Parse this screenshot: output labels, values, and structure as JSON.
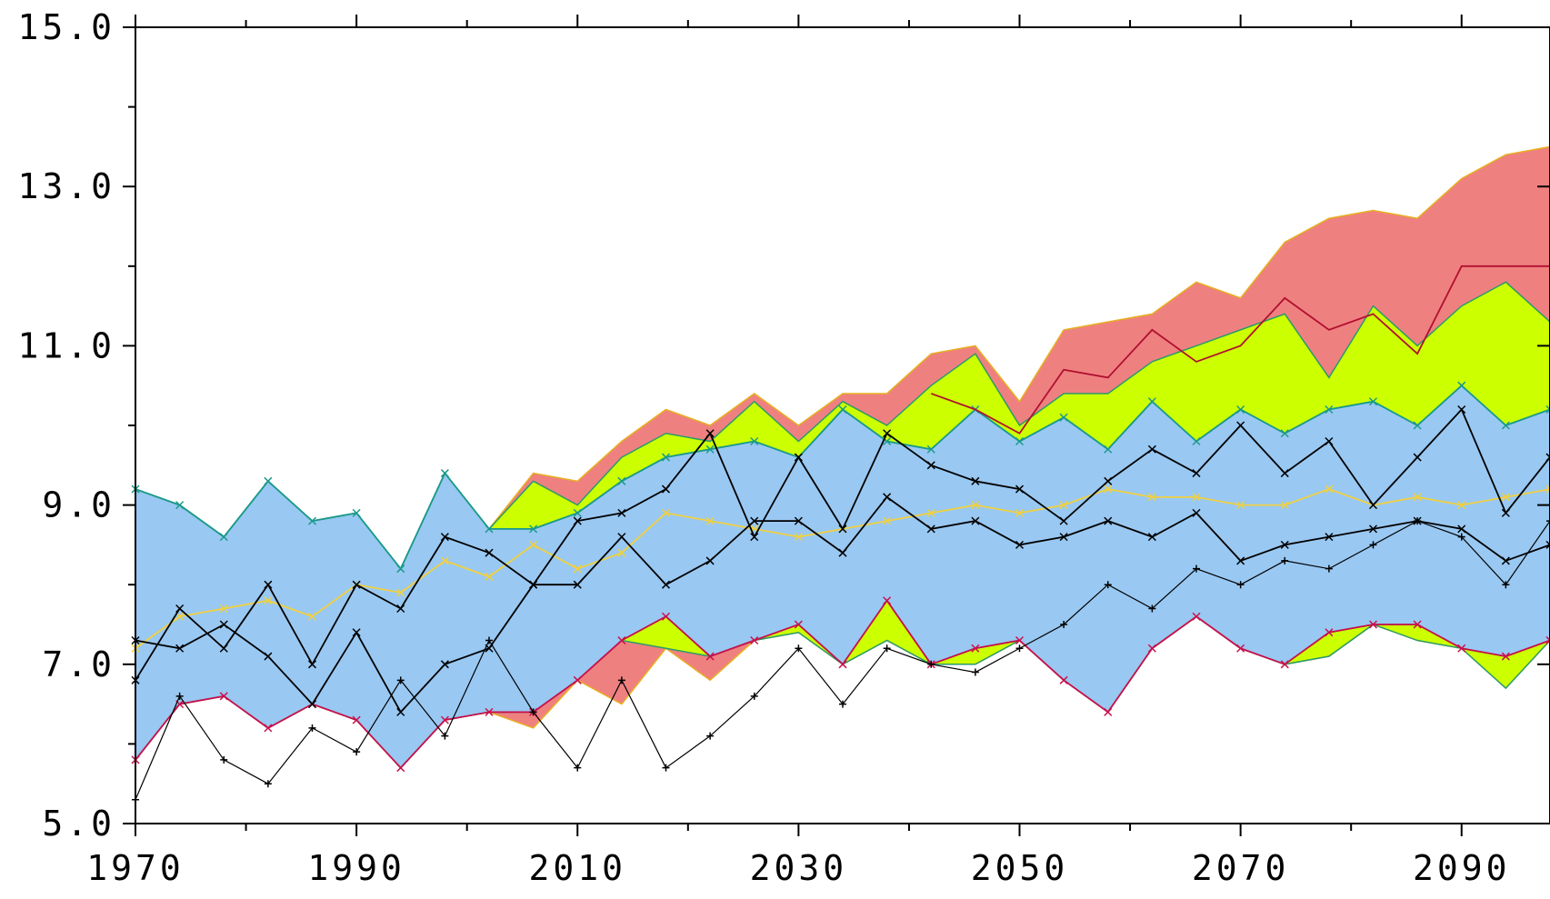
{
  "chart_data": {
    "type": "band",
    "x": [
      1970,
      1974,
      1978,
      1982,
      1986,
      1990,
      1994,
      1998,
      2002,
      2006,
      2010,
      2014,
      2018,
      2022,
      2026,
      2030,
      2034,
      2038,
      2042,
      2046,
      2050,
      2054,
      2058,
      2062,
      2066,
      2070,
      2074,
      2078,
      2082,
      2086,
      2090,
      2094,
      2098
    ],
    "xlim": [
      1970,
      2098
    ],
    "ylim": [
      5,
      15
    ],
    "xticks": [
      1970,
      1990,
      2010,
      2030,
      2050,
      2070,
      2090
    ],
    "xminor_ticks": [
      1980,
      2000,
      2020,
      2040,
      2060,
      2080
    ],
    "yticks": [
      {
        "value": 5,
        "label": "5.0"
      },
      {
        "value": 7,
        "label": "7.0"
      },
      {
        "value": 9,
        "label": "9.0"
      },
      {
        "value": 11,
        "label": "11.0"
      },
      {
        "value": 13,
        "label": "13.0"
      },
      {
        "value": 15,
        "label": "15.0"
      }
    ],
    "yminor_ticks": [
      6,
      8,
      10,
      12,
      14
    ],
    "bands": [
      {
        "color": "#ef8080",
        "line_color": "#e8b020",
        "upper": [
          9.2,
          9.0,
          8.6,
          9.3,
          8.8,
          8.9,
          8.2,
          9.4,
          8.7,
          9.4,
          9.3,
          9.8,
          10.2,
          10.0,
          10.4,
          10.0,
          10.4,
          10.4,
          10.9,
          11.0,
          10.3,
          11.2,
          11.3,
          11.4,
          11.8,
          11.6,
          12.3,
          12.6,
          12.7,
          12.6,
          13.1,
          13.4,
          13.5
        ],
        "lower": [
          5.8,
          6.5,
          6.6,
          6.2,
          6.5,
          6.3,
          5.7,
          6.3,
          6.4,
          6.2,
          6.8,
          6.5,
          7.2,
          6.8,
          7.3,
          7.4,
          7.0,
          7.3,
          7.0,
          7.0,
          7.3,
          6.8,
          6.4,
          7.2,
          7.6,
          7.2,
          7.0,
          7.1,
          7.5,
          7.3,
          7.2,
          6.7,
          7.3
        ]
      },
      {
        "color": "#ccff00",
        "line_color": "#2a9a6a",
        "upper": [
          9.2,
          9.0,
          8.6,
          9.3,
          8.8,
          8.9,
          8.2,
          9.4,
          8.7,
          9.3,
          9.0,
          9.6,
          9.9,
          9.8,
          10.3,
          9.8,
          10.3,
          10.0,
          10.5,
          10.9,
          10.0,
          10.4,
          10.4,
          10.8,
          11.0,
          11.2,
          11.4,
          10.6,
          11.5,
          11.0,
          11.5,
          11.8,
          11.3
        ],
        "lower": [
          5.8,
          6.5,
          6.6,
          6.2,
          6.5,
          6.3,
          5.7,
          6.3,
          6.4,
          6.4,
          6.9,
          7.3,
          7.2,
          7.1,
          7.3,
          7.4,
          7.0,
          7.3,
          7.0,
          7.0,
          7.3,
          6.8,
          6.4,
          7.2,
          7.6,
          7.2,
          7.0,
          7.1,
          7.5,
          7.3,
          7.2,
          6.7,
          7.3
        ]
      },
      {
        "color": "#99c8f2",
        "line_color": "#1a9a8a",
        "upper": [
          9.2,
          9.0,
          8.6,
          9.3,
          8.8,
          8.9,
          8.2,
          9.4,
          8.7,
          8.7,
          8.9,
          9.3,
          9.6,
          9.7,
          9.8,
          9.6,
          10.2,
          9.8,
          9.7,
          10.2,
          9.8,
          10.1,
          9.7,
          10.3,
          9.8,
          10.2,
          9.9,
          10.2,
          10.3,
          10.0,
          10.5,
          10.0,
          10.2
        ],
        "lower": [
          5.8,
          6.5,
          6.6,
          6.2,
          6.5,
          6.3,
          5.7,
          6.3,
          6.4,
          6.4,
          6.8,
          7.3,
          7.6,
          7.1,
          7.3,
          7.5,
          7.0,
          7.8,
          7.0,
          7.2,
          7.3,
          6.8,
          6.4,
          7.2,
          7.6,
          7.2,
          7.0,
          7.4,
          7.5,
          7.5,
          7.2,
          7.1,
          7.3
        ]
      }
    ],
    "lines": [
      {
        "color": "#c8104a",
        "marker": "x",
        "values": [
          5.8,
          6.5,
          6.6,
          6.2,
          6.5,
          6.3,
          5.7,
          6.3,
          6.4,
          6.4,
          6.8,
          7.3,
          7.6,
          7.1,
          7.3,
          7.5,
          7.0,
          7.8,
          7.0,
          7.2,
          7.3,
          6.8,
          6.4,
          7.2,
          7.6,
          7.2,
          7.0,
          7.4,
          7.5,
          7.5,
          7.2,
          7.1,
          7.3
        ]
      },
      {
        "color": "#1a9a8a",
        "marker": "x",
        "values": [
          9.2,
          9.0,
          8.6,
          9.3,
          8.8,
          8.9,
          8.2,
          9.4,
          8.7,
          8.7,
          8.9,
          9.3,
          9.6,
          9.7,
          9.8,
          9.6,
          10.2,
          9.8,
          9.7,
          10.2,
          9.8,
          10.1,
          9.7,
          10.3,
          9.8,
          10.2,
          9.9,
          10.2,
          10.3,
          10.0,
          10.5,
          10.0,
          10.2
        ]
      },
      {
        "color": "#b01030",
        "marker": "none",
        "values": [
          null,
          null,
          null,
          null,
          null,
          null,
          null,
          null,
          null,
          null,
          null,
          null,
          null,
          null,
          null,
          null,
          null,
          null,
          10.4,
          10.2,
          9.9,
          10.7,
          10.6,
          11.2,
          10.8,
          11.0,
          11.6,
          11.2,
          11.4,
          10.9,
          12.0,
          12.0,
          12.0
        ]
      },
      {
        "color": "#f0d040",
        "marker": "x",
        "values": [
          7.2,
          7.6,
          7.7,
          7.8,
          7.6,
          8.0,
          7.9,
          8.3,
          8.1,
          8.5,
          8.2,
          8.4,
          8.9,
          8.8,
          8.7,
          8.6,
          8.7,
          8.8,
          8.9,
          9.0,
          8.9,
          9.0,
          9.2,
          9.1,
          9.1,
          9.0,
          9.0,
          9.2,
          9.0,
          9.1,
          9.0,
          9.1,
          9.2
        ]
      },
      {
        "color": "#000000",
        "marker": "x",
        "values": [
          6.8,
          7.7,
          7.2,
          8.0,
          7.0,
          8.0,
          7.7,
          8.6,
          8.4,
          8.0,
          8.8,
          8.9,
          9.2,
          9.9,
          8.6,
          9.6,
          8.7,
          9.9,
          9.5,
          9.3,
          9.2,
          8.8,
          9.3,
          9.7,
          9.4,
          10.0,
          9.4,
          9.8,
          9.0,
          9.6,
          10.2,
          8.9,
          9.6
        ]
      },
      {
        "color": "#000000",
        "marker": "x",
        "values": [
          7.3,
          7.2,
          7.5,
          7.1,
          6.5,
          7.4,
          6.4,
          7.0,
          7.2,
          8.0,
          8.0,
          8.6,
          8.0,
          8.3,
          8.8,
          8.8,
          8.4,
          9.1,
          8.7,
          8.8,
          8.5,
          8.6,
          8.8,
          8.6,
          8.9,
          8.3,
          8.5,
          8.6,
          8.7,
          8.8,
          8.7,
          8.3,
          8.5
        ]
      },
      {
        "color": "#000000",
        "marker": "+",
        "values": [
          5.3,
          6.6,
          5.8,
          5.5,
          6.2,
          5.9,
          6.8,
          6.1,
          7.3,
          6.4,
          5.7,
          6.8,
          5.7,
          6.1,
          6.6,
          7.2,
          6.5,
          7.2,
          7.0,
          6.9,
          7.2,
          7.5,
          8.0,
          7.7,
          8.2,
          8.0,
          8.3,
          8.2,
          8.5,
          8.8,
          8.6,
          8.0,
          8.8
        ]
      }
    ]
  }
}
